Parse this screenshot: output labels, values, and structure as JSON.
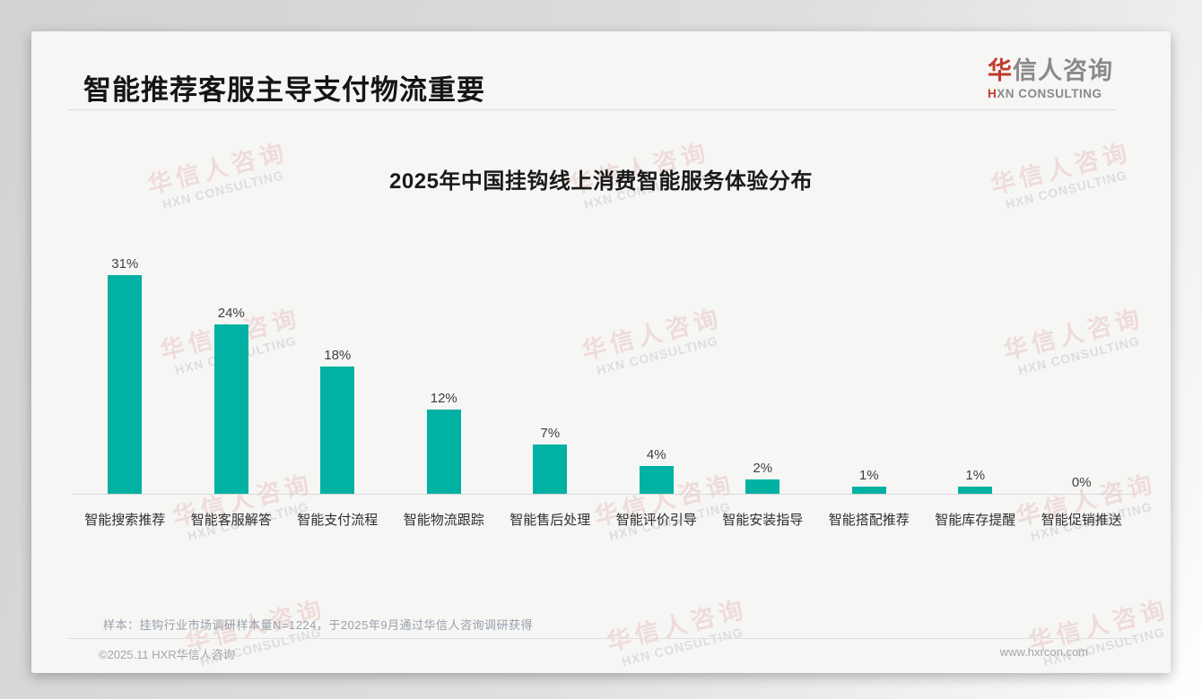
{
  "header": {
    "title": "智能推荐客服主导支付物流重要"
  },
  "logo": {
    "cn_accent": "华",
    "cn_rest": "信人咨询",
    "en_accent": "H",
    "en_rest": "XN CONSULTING"
  },
  "watermark": {
    "cn": "华信人咨询",
    "en": "HXN CONSULTING"
  },
  "chart_data": {
    "type": "bar",
    "title": "2025年中国挂钩线上消费智能服务体验分布",
    "categories": [
      "智能搜索推荐",
      "智能客服解答",
      "智能支付流程",
      "智能物流跟踪",
      "智能售后处理",
      "智能评价引导",
      "智能安装指导",
      "智能搭配推荐",
      "智能库存提醒",
      "智能促销推送"
    ],
    "values": [
      31,
      24,
      18,
      12,
      7,
      4,
      2,
      1,
      1,
      0
    ],
    "data_labels": [
      "31%",
      "24%",
      "18%",
      "12%",
      "7%",
      "4%",
      "2%",
      "1%",
      "1%",
      "0%"
    ],
    "unit": "%",
    "ylim": [
      0,
      33
    ],
    "bar_color": "#00b1a4",
    "grid": false,
    "legend": "none",
    "xlabel": "",
    "ylabel": ""
  },
  "footnote": "样本：挂钩行业市场调研样本量N=1224，于2025年9月通过华信人咨询调研获得",
  "footer": {
    "copyright": "©2025.11 HXR华信人咨询",
    "website": "www.hxrcon.com"
  }
}
